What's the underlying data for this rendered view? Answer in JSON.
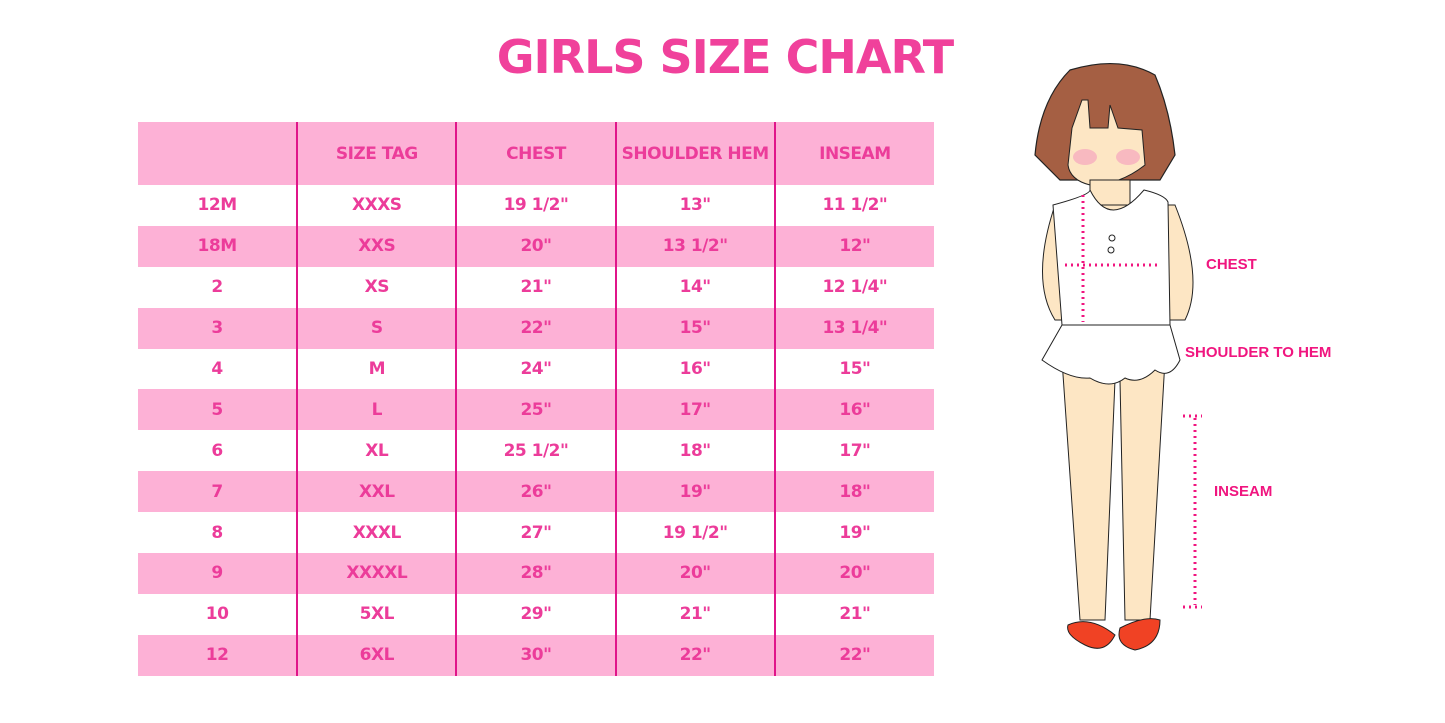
{
  "title": "GIRLS SIZE CHART",
  "colors": {
    "row_pink": "#fdb1d6",
    "text_pink": "#ec3c9a",
    "divider": "#e0158a"
  },
  "table": {
    "headers": [
      "",
      "SIZE TAG",
      "CHEST",
      "SHOULDER HEM",
      "INSEAM"
    ],
    "rows": [
      [
        "12M",
        "XXXS",
        "19 1/2\"",
        "13\"",
        "11 1/2\""
      ],
      [
        "18M",
        "XXS",
        "20\"",
        "13 1/2\"",
        "12\""
      ],
      [
        "2",
        "XS",
        "21\"",
        "14\"",
        "12 1/4\""
      ],
      [
        "3",
        "S",
        "22\"",
        "15\"",
        "13 1/4\""
      ],
      [
        "4",
        "M",
        "24\"",
        "16\"",
        "15\""
      ],
      [
        "5",
        "L",
        "25\"",
        "17\"",
        "16\""
      ],
      [
        "6",
        "XL",
        "25 1/2\"",
        "18\"",
        "17\""
      ],
      [
        "7",
        "XXL",
        "26\"",
        "19\"",
        "18\""
      ],
      [
        "8",
        "XXXL",
        "27\"",
        "19 1/2\"",
        "19\""
      ],
      [
        "9",
        "XXXXL",
        "28\"",
        "20\"",
        "20\""
      ],
      [
        "10",
        "5XL",
        "29\"",
        "21\"",
        "21\""
      ],
      [
        "12",
        "6XL",
        "30\"",
        "22\"",
        "22\""
      ]
    ]
  },
  "diagram": {
    "chest_label": "CHEST",
    "shoulder_label": "SHOULDER TO HEM",
    "inseam_label": "INSEAM"
  }
}
